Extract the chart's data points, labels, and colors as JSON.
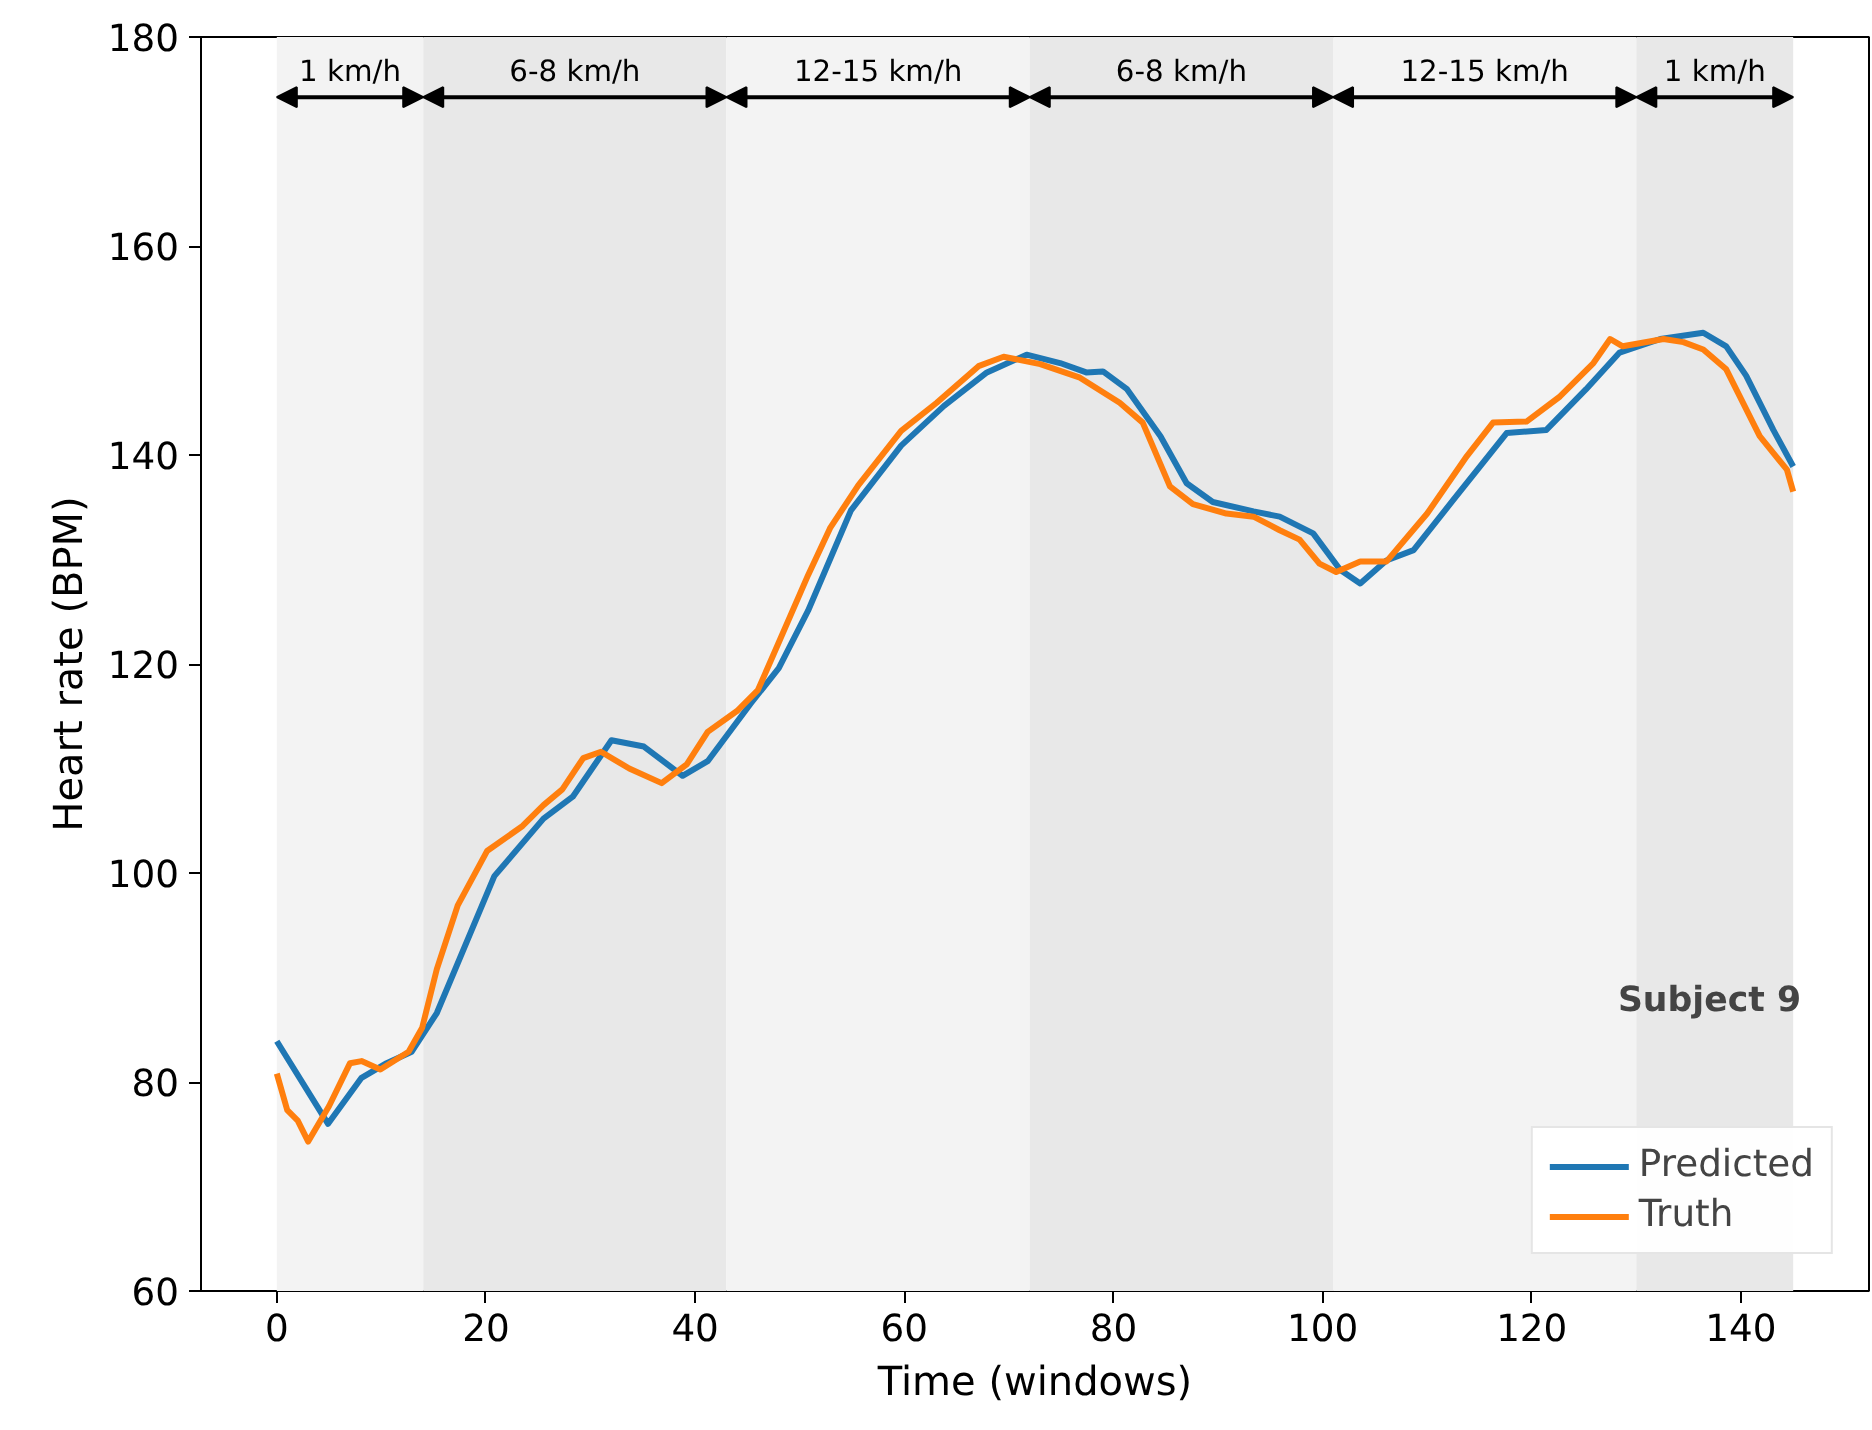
{
  "chart_data": {
    "type": "line",
    "xlabel": "Time (windows)",
    "ylabel": "Heart rate (BPM)",
    "xlim": [
      -7.25,
      152.25
    ],
    "ylim": [
      60,
      180
    ],
    "xticks": [
      0,
      20,
      40,
      60,
      80,
      100,
      120,
      140
    ],
    "yticks": [
      60,
      80,
      100,
      120,
      140,
      160,
      180
    ],
    "grid": false,
    "legend": "bottom right",
    "line_style": "solid",
    "marker": "none",
    "series": [
      {
        "name": "Predicted",
        "color": "#1f77b4",
        "x": [
          0,
          4.9,
          8.1,
          10.5,
          12.9,
          15.3,
          20.8,
          25.5,
          28.3,
          32,
          35.1,
          38.8,
          41.2,
          45.3,
          48,
          50.8,
          54.9,
          59.7,
          63.8,
          67.9,
          71.7,
          74.9,
          77.4,
          79,
          81.3,
          84.5,
          87,
          89.5,
          93.4,
          95.9,
          99.1,
          101.7,
          103.6,
          106.1,
          108.7,
          112.5,
          117.6,
          121.4,
          125.2,
          128.4,
          132.3,
          136.4,
          138.6,
          140.5,
          143.1,
          145
        ],
        "values": [
          83.9,
          76.0,
          80.4,
          81.8,
          82.9,
          86.6,
          99.7,
          105.2,
          107.3,
          112.7,
          112.1,
          109.3,
          110.7,
          116.2,
          119.6,
          125.1,
          134.7,
          140.9,
          144.7,
          147.9,
          149.6,
          148.8,
          147.9,
          148,
          146.3,
          141.8,
          137.3,
          135.5,
          134.6,
          134.1,
          132.5,
          129.0,
          127.7,
          129.9,
          130.9,
          135.7,
          142.1,
          142.4,
          146.3,
          149.8,
          151.1,
          151.7,
          150.4,
          147.6,
          142.4,
          138.9
        ]
      },
      {
        "name": "Truth",
        "color": "#ff7f0e",
        "x": [
          0,
          1,
          2,
          3,
          5,
          7,
          8.1,
          9.9,
          12.6,
          13.9,
          15.3,
          17.3,
          20.1,
          23.5,
          25.5,
          27.3,
          29.3,
          31,
          33.7,
          36.8,
          39.2,
          41.2,
          44,
          46,
          48.1,
          50.8,
          52.9,
          55.6,
          59.7,
          63.1,
          67.1,
          69.5,
          73,
          76.8,
          80.6,
          82.8,
          85.4,
          87.6,
          90.8,
          93.4,
          95.9,
          97.8,
          99.7,
          101.3,
          103.6,
          106.1,
          110,
          113.8,
          116.3,
          119.5,
          122.7,
          125.9,
          127.5,
          128.7,
          132.6,
          134.5,
          136.4,
          138.6,
          141.8,
          144.4,
          145
        ],
        "values": [
          80.8,
          77.3,
          76.3,
          74.3,
          77.7,
          81.8,
          82.0,
          81.2,
          82.9,
          85.2,
          90.8,
          96.9,
          102.1,
          104.5,
          106.5,
          108,
          111,
          111.6,
          110,
          108.6,
          110.4,
          113.5,
          115.5,
          117.5,
          122.3,
          128.5,
          133,
          137.1,
          142.3,
          145,
          148.5,
          149.4,
          148.7,
          147.4,
          145,
          143.1,
          137,
          135.3,
          134.4,
          134.1,
          132.8,
          131.9,
          129.6,
          128.8,
          129.8,
          129.8,
          134.4,
          139.9,
          143.1,
          143.2,
          145.6,
          148.8,
          151.1,
          150.4,
          151.1,
          150.8,
          150.1,
          148.2,
          141.8,
          138.6,
          136.5
        ]
      }
    ],
    "bands": [
      {
        "axis": "x",
        "from": 0,
        "to": 14,
        "label": "1 km/h",
        "color": "#f3f3f3"
      },
      {
        "axis": "x",
        "from": 14,
        "to": 43,
        "label": "6-8 km/h",
        "color": "#e8e8e8"
      },
      {
        "axis": "x",
        "from": 43,
        "to": 72,
        "label": "12-15 km/h",
        "color": "#f3f3f3"
      },
      {
        "axis": "x",
        "from": 72,
        "to": 101,
        "label": "6-8 km/h",
        "color": "#e8e8e8"
      },
      {
        "axis": "x",
        "from": 101,
        "to": 130,
        "label": "12-15 km/h",
        "color": "#f3f3f3"
      },
      {
        "axis": "x",
        "from": 130,
        "to": 145,
        "label": "1 km/h",
        "color": "#e8e8e8"
      }
    ],
    "annotations": [
      "Subject 9"
    ]
  }
}
